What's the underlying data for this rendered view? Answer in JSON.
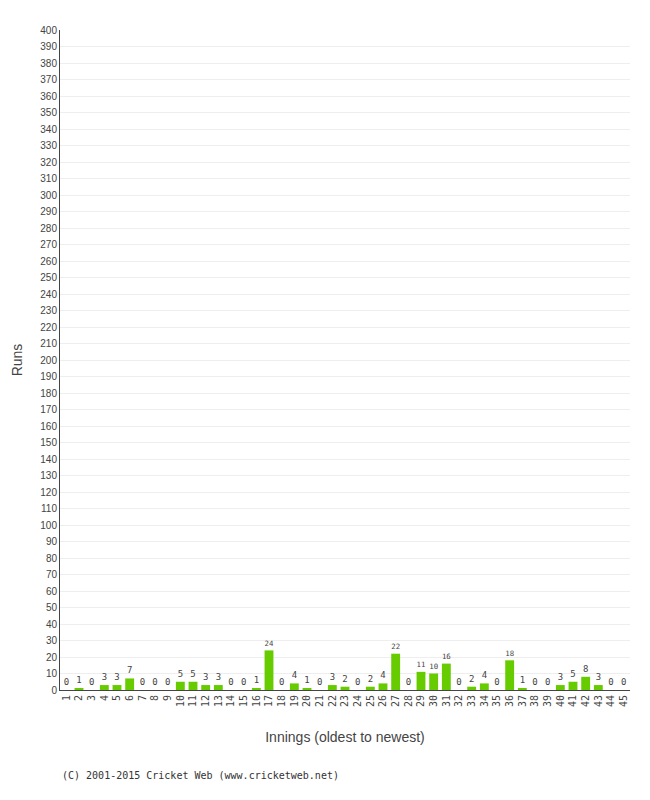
{
  "chart_data": {
    "type": "bar",
    "categories": [
      1,
      2,
      3,
      4,
      5,
      6,
      7,
      8,
      9,
      10,
      11,
      12,
      13,
      14,
      15,
      16,
      17,
      18,
      19,
      20,
      21,
      22,
      23,
      24,
      25,
      26,
      27,
      28,
      29,
      30,
      31,
      32,
      33,
      34,
      35,
      36,
      37,
      38,
      39,
      40,
      41,
      42,
      43,
      44,
      45
    ],
    "values": [
      0,
      1,
      0,
      3,
      3,
      7,
      0,
      0,
      0,
      5,
      5,
      3,
      3,
      0,
      0,
      1,
      24,
      0,
      4,
      1,
      0,
      3,
      2,
      0,
      2,
      4,
      22,
      0,
      11,
      10,
      16,
      0,
      2,
      4,
      0,
      18,
      1,
      0,
      0,
      3,
      5,
      8,
      3,
      0,
      0
    ],
    "color": "#66cc00",
    "xlabel": "Innings (oldest to newest)",
    "ylabel": "Runs",
    "ylim": [
      0,
      400
    ],
    "yticks": [
      0,
      10,
      20,
      30,
      40,
      50,
      60,
      70,
      80,
      90,
      100,
      110,
      120,
      130,
      140,
      150,
      160,
      170,
      180,
      190,
      200,
      210,
      220,
      230,
      240,
      250,
      260,
      270,
      280,
      290,
      300,
      310,
      320,
      330,
      340,
      350,
      360,
      370,
      380,
      390,
      400
    ],
    "grid": true,
    "data_labels": true,
    "annotations": [
      "(C) 2001-2015 Cricket Web (www.cricketweb.net)"
    ]
  }
}
